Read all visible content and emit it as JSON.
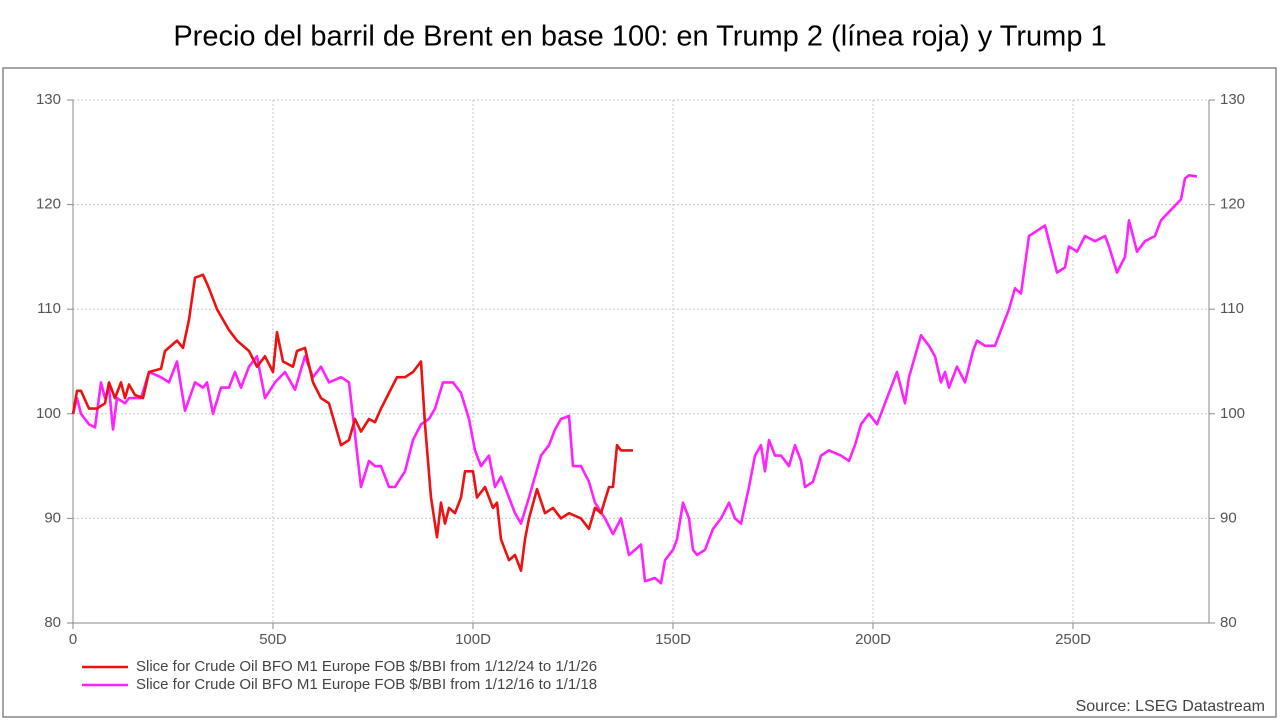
{
  "chart_data": {
    "type": "line",
    "title": "Precio del barril de Brent en base 100: en Trump 2 (línea roja) y Trump 1",
    "source": "Source: LSEG Datastream",
    "xlim": [
      0,
      284
    ],
    "xticks": [
      0,
      {
        "value": 50,
        "label": "50D"
      },
      {
        "value": 100,
        "label": "100D"
      },
      {
        "value": 150,
        "label": "150D"
      },
      {
        "value": 200,
        "label": "200D"
      },
      {
        "value": 250,
        "label": "250D"
      }
    ],
    "ylim": [
      80,
      130
    ],
    "yticks": [
      80,
      90,
      100,
      110,
      120,
      130
    ],
    "y2lim": [
      80,
      130
    ],
    "y2ticks": [
      80,
      90,
      100,
      110,
      120,
      130
    ],
    "grid": true,
    "legend": "bottom-left",
    "series": [
      {
        "name": "Slice for Crude Oil BFO M1 Europe FOB $/BBI from 1/12/24 to 1/1/26",
        "color": "#ee1111",
        "x": [
          0,
          1,
          2,
          4,
          6,
          8,
          9,
          10.5,
          12,
          13,
          14,
          15.5,
          17.5,
          19,
          22,
          23,
          26,
          27.5,
          29,
          30.5,
          32.5,
          34,
          36,
          39,
          41,
          44,
          46,
          48,
          50,
          51,
          52.5,
          55,
          56,
          58,
          60,
          62,
          64,
          65.5,
          67,
          69,
          70.5,
          72,
          74,
          75.5,
          77,
          79,
          81,
          83,
          85,
          87,
          88,
          89.5,
          91,
          92,
          93,
          94,
          95.5,
          97,
          98,
          100,
          101,
          103,
          105,
          106,
          107,
          109,
          110.5,
          112,
          113,
          114,
          116,
          118,
          120,
          122,
          124,
          127,
          129,
          130.5,
          132,
          134,
          135,
          136,
          137,
          140
        ],
        "values": [
          100,
          102.2,
          102.2,
          100.5,
          100.5,
          101,
          103,
          101.5,
          103,
          101.5,
          102.8,
          101.8,
          101.5,
          104,
          104.3,
          106,
          107,
          106.3,
          109,
          113,
          113.3,
          112,
          110,
          108,
          107,
          106,
          104.5,
          105.5,
          104,
          107.8,
          105,
          104.5,
          106,
          106.3,
          103,
          101.5,
          101,
          99,
          97,
          97.5,
          99.5,
          98.3,
          99.5,
          99.2,
          100.5,
          102,
          103.5,
          103.5,
          104,
          105,
          99,
          92,
          88.2,
          91.5,
          89.5,
          91,
          90.5,
          92,
          94.5,
          94.5,
          92,
          93,
          91,
          91.5,
          88,
          86,
          86.5,
          85,
          88,
          90,
          92.8,
          90.5,
          91,
          90,
          90.5,
          90,
          89,
          91,
          90.5,
          93,
          93,
          97,
          96.5,
          96.5
        ]
      },
      {
        "name": "Slice for Crude Oil BFO M1 Europe FOB $/BBI from 1/12/16 to 1/1/18",
        "color": "#ff22ff",
        "x": [
          0,
          1,
          2,
          3,
          4,
          5.5,
          7,
          8,
          9,
          10,
          11,
          13,
          14,
          17,
          19,
          22,
          24,
          26,
          28,
          30.5,
          32.5,
          33.5,
          35,
          37,
          39,
          40.5,
          42,
          44,
          46,
          48,
          50.5,
          53,
          55.5,
          58,
          60,
          62,
          64,
          67,
          69,
          70.5,
          72,
          74,
          75.5,
          77,
          79,
          80.5,
          83,
          85,
          87,
          89,
          90.5,
          92.5,
          95,
          97,
          99,
          100.5,
          102,
          104,
          105.5,
          107,
          109,
          110.5,
          112,
          114,
          115.5,
          117,
          119,
          120.5,
          122,
          124,
          125,
          127,
          129,
          130.5,
          133,
          135,
          137,
          139,
          140.5,
          142,
          143,
          145.5,
          147,
          148,
          150,
          151,
          152.5,
          154,
          155,
          156,
          158,
          160,
          162,
          164,
          165.5,
          167,
          169,
          170.5,
          172,
          173,
          174,
          175.5,
          177,
          179,
          180.5,
          182,
          183,
          185,
          187,
          189,
          192,
          194,
          195.5,
          197,
          199,
          201,
          203,
          204,
          206,
          208,
          209,
          210.5,
          212,
          214,
          215.5,
          217,
          218,
          219,
          221,
          223,
          225,
          226,
          228,
          230.5,
          232,
          234,
          235.5,
          237,
          239,
          241,
          243,
          245,
          246,
          248,
          249,
          251,
          253,
          255.5,
          258,
          259,
          261,
          263,
          264,
          266,
          268,
          270.5,
          272,
          274.5,
          277,
          278,
          279,
          281
        ],
        "values": [
          100,
          101.5,
          100,
          99.5,
          99,
          98.7,
          103,
          101.5,
          102.5,
          98.5,
          101.5,
          101,
          101.5,
          101.5,
          104,
          103.5,
          103,
          105,
          100.3,
          103,
          102.5,
          103,
          100,
          102.5,
          102.5,
          104,
          102.5,
          104.5,
          105.5,
          101.5,
          103,
          104,
          102.3,
          105.5,
          103.5,
          104.5,
          103,
          103.5,
          103,
          98,
          93,
          95.5,
          95,
          95,
          93,
          93,
          94.5,
          97.5,
          99,
          99.5,
          100.5,
          103,
          103,
          102,
          99.5,
          96.5,
          95,
          96,
          93,
          94,
          92,
          90.5,
          89.5,
          92,
          94,
          96,
          97,
          98.5,
          99.5,
          99.8,
          95,
          95,
          93.5,
          91.5,
          90,
          88.5,
          90,
          86.5,
          87,
          87.5,
          84,
          84.3,
          83.8,
          86,
          87,
          88,
          91.5,
          90,
          87,
          86.5,
          87,
          89,
          90,
          91.5,
          90,
          89.5,
          93,
          96,
          97,
          94.5,
          97.5,
          96,
          96,
          95,
          97,
          95.5,
          93,
          93.5,
          96,
          96.5,
          96,
          95.5,
          97,
          99,
          100,
          99,
          101,
          102,
          104,
          101,
          103.5,
          105.5,
          107.5,
          106.5,
          105.5,
          103,
          104,
          102.5,
          104.5,
          103,
          106,
          107,
          106.5,
          106.5,
          108,
          110,
          112,
          111.5,
          117,
          117.5,
          118,
          115,
          113.5,
          114,
          116,
          115.5,
          117,
          116.5,
          117,
          116,
          113.5,
          115,
          118.5,
          115.5,
          116.5,
          117,
          118.5,
          119.5,
          120.5,
          122.5,
          122.8,
          122.7
        ]
      }
    ]
  }
}
